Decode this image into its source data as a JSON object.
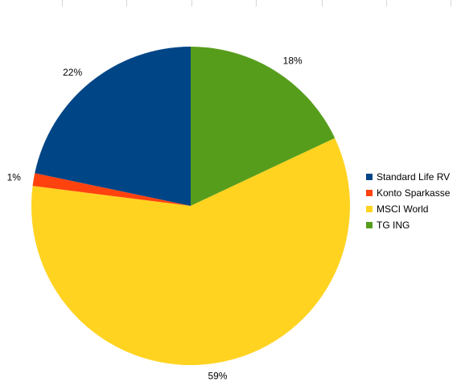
{
  "chart_data": {
    "type": "pie",
    "title": "",
    "legend_position": "right",
    "slices": [
      {
        "label": "TG ING",
        "value": 18,
        "display": "18%",
        "color": "#579D1C"
      },
      {
        "label": "MSCI World",
        "value": 59,
        "display": "59%",
        "color": "#FFD320"
      },
      {
        "label": "Konto Sparkasse",
        "value": 1.3,
        "display": "1%",
        "color": "#FF420E"
      },
      {
        "label": "Standard Life RV",
        "value": 21.7,
        "display": "22%",
        "color": "#004586"
      }
    ],
    "legend": [
      {
        "label": "Standard Life RV",
        "color": "#004586"
      },
      {
        "label": "Konto Sparkasse",
        "color": "#FF420E"
      },
      {
        "label": "MSCI World",
        "color": "#FFD320"
      },
      {
        "label": "TG ING",
        "color": "#579D1C"
      }
    ]
  }
}
